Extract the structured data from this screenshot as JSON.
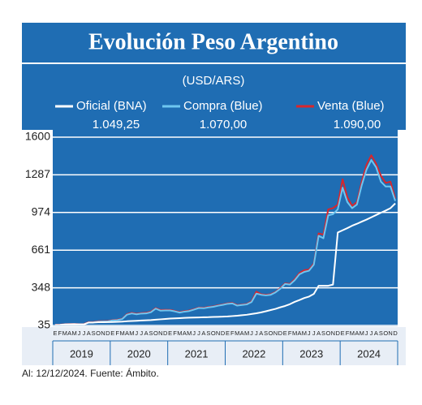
{
  "chart_data": {
    "type": "line",
    "title": "Evolución Peso Argentino",
    "subtitle": "(USD/ARS)",
    "footer": "Al: 12/12/2024. Fuente: Ámbito.",
    "categories": [
      "E",
      "F",
      "M",
      "A",
      "M",
      "J",
      "J",
      "A",
      "S",
      "O",
      "N",
      "D",
      "E",
      "F",
      "M",
      "A",
      "M",
      "J",
      "J",
      "A",
      "S",
      "O",
      "N",
      "D",
      "E",
      "F",
      "M",
      "A",
      "M",
      "J",
      "J",
      "A",
      "S",
      "O",
      "N",
      "D",
      "E",
      "F",
      "M",
      "A",
      "M",
      "J",
      "J",
      "A",
      "S",
      "O",
      "N",
      "D",
      "E",
      "F",
      "M",
      "A",
      "M",
      "J",
      "J",
      "A",
      "S",
      "O",
      "N",
      "D",
      "E",
      "F",
      "M",
      "A",
      "M",
      "J",
      "J",
      "A",
      "S",
      "O",
      "N",
      "D"
    ],
    "years": [
      "2019",
      "2020",
      "2021",
      "2022",
      "2023",
      "2024"
    ],
    "ylim": [
      35,
      1600
    ],
    "yticks": [
      35,
      348,
      661,
      974,
      1287,
      1600
    ],
    "grid": true,
    "series": [
      {
        "name": "Oficial (BNA)",
        "color": "#ffffff",
        "last_label": "1.049,25",
        "values": [
          38,
          39,
          43,
          45,
          46,
          44,
          44,
          59,
          59,
          62,
          62,
          63,
          64,
          65,
          67,
          70,
          72,
          74,
          76,
          78,
          80,
          83,
          86,
          89,
          92,
          94,
          96,
          98,
          100,
          101,
          102,
          103,
          104,
          106,
          107,
          108,
          110,
          113,
          116,
          120,
          124,
          130,
          136,
          144,
          153,
          163,
          173,
          186,
          197,
          212,
          231,
          246,
          263,
          275,
          297,
          365,
          365,
          365,
          375,
          808,
          826,
          844,
          864,
          880,
          898,
          915,
          934,
          953,
          972,
          990,
          1010,
          1049.25
        ]
      },
      {
        "name": "Compra (Blue)",
        "color": "#6ec6f0",
        "last_label": "1.070,00",
        "values": [
          39,
          40,
          45,
          45,
          46,
          44,
          45,
          60,
          61,
          66,
          68,
          69,
          77,
          80,
          88,
          125,
          135,
          128,
          134,
          135,
          145,
          175,
          158,
          160,
          160,
          152,
          142,
          150,
          155,
          167,
          180,
          178,
          185,
          190,
          199,
          206,
          215,
          218,
          200,
          205,
          210,
          230,
          300,
          290,
          285,
          290,
          310,
          340,
          380,
          375,
          410,
          460,
          480,
          490,
          540,
          780,
          760,
          950,
          960,
          1000,
          1180,
          1060,
          1010,
          1040,
          1200,
          1330,
          1410,
          1350,
          1230,
          1190,
          1190,
          1070
        ]
      },
      {
        "name": "Venta (Blue)",
        "color": "#d9262c",
        "last_label": "1.090,00",
        "values": [
          41,
          42,
          47,
          47,
          48,
          46,
          47,
          63,
          64,
          70,
          70,
          72,
          80,
          83,
          91,
          130,
          140,
          132,
          138,
          140,
          150,
          180,
          163,
          165,
          164,
          156,
          146,
          154,
          159,
          171,
          184,
          182,
          189,
          194,
          203,
          210,
          219,
          222,
          204,
          209,
          214,
          236,
          316,
          295,
          290,
          295,
          314,
          346,
          385,
          380,
          420,
          470,
          495,
          500,
          550,
          800,
          790,
          1000,
          1010,
          1040,
          1250,
          1100,
          1030,
          1060,
          1230,
          1370,
          1450,
          1380,
          1280,
          1220,
          1230,
          1090
        ]
      }
    ]
  }
}
